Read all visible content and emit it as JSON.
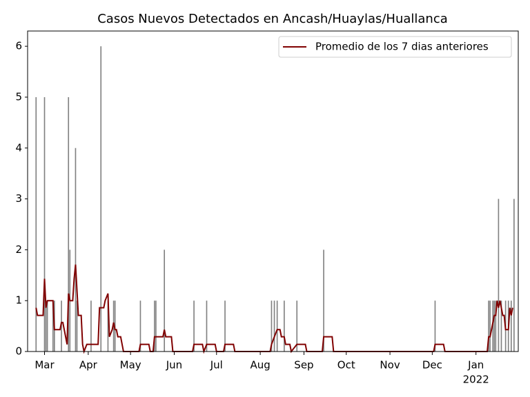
{
  "chart_data": {
    "type": "bar",
    "title": "Casos Nuevos Detectados en Ancash/Huaylas/Huallanca",
    "xlim": [
      "2021-02-17",
      "2022-01-31"
    ],
    "xticks": [
      {
        "value": "2021-03-01",
        "label": "Mar"
      },
      {
        "value": "2021-04-01",
        "label": "Apr"
      },
      {
        "value": "2021-05-01",
        "label": "May"
      },
      {
        "value": "2021-06-01",
        "label": "Jun"
      },
      {
        "value": "2021-07-01",
        "label": "Jul"
      },
      {
        "value": "2021-08-01",
        "label": "Aug"
      },
      {
        "value": "2021-09-01",
        "label": "Sep"
      },
      {
        "value": "2021-10-01",
        "label": "Oct"
      },
      {
        "value": "2021-11-01",
        "label": "Nov"
      },
      {
        "value": "2021-12-01",
        "label": "Dec"
      },
      {
        "value": "2022-01-01",
        "label": "Jan"
      }
    ],
    "x_year_label": "2022",
    "ylim": [
      0,
      6.3
    ],
    "yticks": [
      0,
      1,
      2,
      3,
      4,
      5,
      6
    ],
    "legend": "upper right",
    "series": [
      {
        "type": "bar",
        "color": "#808080",
        "x": [
          "2021-02-23",
          "2021-03-01",
          "2021-03-02",
          "2021-03-03",
          "2021-03-07",
          "2021-03-08",
          "2021-03-13",
          "2021-03-18",
          "2021-03-19",
          "2021-03-23",
          "2021-03-24",
          "2021-04-03",
          "2021-04-10",
          "2021-04-15",
          "2021-04-19",
          "2021-04-20",
          "2021-05-08",
          "2021-05-18",
          "2021-05-19",
          "2021-05-25",
          "2021-06-15",
          "2021-06-24",
          "2021-07-07",
          "2021-08-09",
          "2021-08-11",
          "2021-08-13",
          "2021-08-18",
          "2021-08-27",
          "2021-09-15",
          "2021-12-03",
          "2022-01-10",
          "2022-01-11",
          "2022-01-13",
          "2022-01-14",
          "2022-01-15",
          "2022-01-17",
          "2022-01-19",
          "2022-01-22",
          "2022-01-24",
          "2022-01-26",
          "2022-01-28"
        ],
        "values": [
          5,
          5,
          1,
          1,
          1,
          1,
          1,
          5,
          2,
          4,
          1,
          1,
          6,
          1,
          1,
          1,
          1,
          1,
          1,
          2,
          1,
          1,
          1,
          1,
          1,
          1,
          1,
          1,
          2,
          1,
          1,
          1,
          1,
          1,
          1,
          3,
          1,
          1,
          1,
          1,
          3
        ]
      },
      {
        "type": "line",
        "name": "Promedio de los 7 dias anteriores",
        "color": "#800000",
        "x": [
          "2021-02-23",
          "2021-02-24",
          "2021-02-28",
          "2021-03-01",
          "2021-03-02",
          "2021-03-03",
          "2021-03-07",
          "2021-03-08",
          "2021-03-12",
          "2021-03-13",
          "2021-03-14",
          "2021-03-17",
          "2021-03-18",
          "2021-03-19",
          "2021-03-21",
          "2021-03-22",
          "2021-03-23",
          "2021-03-25",
          "2021-03-27",
          "2021-03-28",
          "2021-03-29",
          "2021-03-31",
          "2021-04-08",
          "2021-04-09",
          "2021-04-12",
          "2021-04-13",
          "2021-04-15",
          "2021-04-16",
          "2021-04-18",
          "2021-04-19",
          "2021-04-20",
          "2021-04-21",
          "2021-04-22",
          "2021-04-24",
          "2021-04-26",
          "2021-05-07",
          "2021-05-08",
          "2021-05-14",
          "2021-05-15",
          "2021-05-17",
          "2021-05-18",
          "2021-05-24",
          "2021-05-25",
          "2021-05-26",
          "2021-05-30",
          "2021-05-31",
          "2021-06-14",
          "2021-06-15",
          "2021-06-21",
          "2021-06-22",
          "2021-06-24",
          "2021-06-30",
          "2021-07-01",
          "2021-07-06",
          "2021-07-07",
          "2021-07-13",
          "2021-07-14",
          "2021-08-08",
          "2021-08-09",
          "2021-08-11",
          "2021-08-13",
          "2021-08-15",
          "2021-08-16",
          "2021-08-18",
          "2021-08-19",
          "2021-08-22",
          "2021-08-23",
          "2021-08-27",
          "2021-09-02",
          "2021-09-03",
          "2021-09-14",
          "2021-09-15",
          "2021-09-21",
          "2021-09-22",
          "2021-12-02",
          "2021-12-03",
          "2021-12-09",
          "2021-12-10",
          "2022-01-09",
          "2022-01-10",
          "2022-01-11",
          "2022-01-13",
          "2022-01-14",
          "2022-01-15",
          "2022-01-16",
          "2022-01-17",
          "2022-01-18",
          "2022-01-20",
          "2022-01-21",
          "2022-01-22",
          "2022-01-24",
          "2022-01-25",
          "2022-01-26",
          "2022-01-27"
        ],
        "values": [
          0.86,
          0.71,
          0.71,
          1.43,
          0.86,
          1.0,
          1.0,
          0.43,
          0.43,
          0.57,
          0.57,
          0.14,
          1.14,
          1.0,
          1.0,
          1.43,
          1.71,
          0.71,
          0.71,
          0.14,
          0,
          0.14,
          0.14,
          0.86,
          0.86,
          1.0,
          1.14,
          0.29,
          0.43,
          0.57,
          0.43,
          0.43,
          0.29,
          0.29,
          0,
          0,
          0.14,
          0.14,
          0,
          0,
          0.29,
          0.29,
          0.43,
          0.29,
          0.29,
          0,
          0,
          0.14,
          0.14,
          0,
          0.14,
          0.14,
          0,
          0,
          0.14,
          0.14,
          0,
          0,
          0.14,
          0.29,
          0.43,
          0.43,
          0.29,
          0.29,
          0.14,
          0.14,
          0,
          0.14,
          0.14,
          0,
          0,
          0.29,
          0.29,
          0,
          0,
          0.14,
          0.14,
          0,
          0,
          0.29,
          0.29,
          0.57,
          0.71,
          0.71,
          1.0,
          0.86,
          1.0,
          0.71,
          0.71,
          0.43,
          0.43,
          0.86,
          0.71,
          0.86
        ]
      }
    ]
  }
}
